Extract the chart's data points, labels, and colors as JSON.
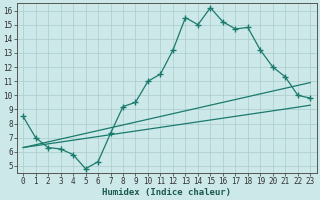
{
  "xlabel": "Humidex (Indice chaleur)",
  "bg_color": "#cce8e8",
  "line_color": "#1a7a6e",
  "grid_color": "#aacccc",
  "xlim": [
    -0.5,
    23.5
  ],
  "ylim": [
    4.5,
    16.5
  ],
  "xticks": [
    0,
    1,
    2,
    3,
    4,
    5,
    6,
    7,
    8,
    9,
    10,
    11,
    12,
    13,
    14,
    15,
    16,
    17,
    18,
    19,
    20,
    21,
    22,
    23
  ],
  "yticks": [
    5,
    6,
    7,
    8,
    9,
    10,
    11,
    12,
    13,
    14,
    15,
    16
  ],
  "series": [
    {
      "x": [
        0,
        1,
        2,
        3,
        4,
        5,
        6,
        7,
        8,
        9,
        10,
        11,
        12,
        13,
        14,
        15,
        16,
        17,
        18,
        19,
        20,
        21,
        22,
        23
      ],
      "y": [
        8.5,
        7.0,
        6.3,
        6.2,
        5.8,
        4.8,
        5.3,
        7.3,
        9.2,
        9.5,
        11.0,
        11.5,
        13.2,
        15.5,
        15.0,
        16.2,
        15.2,
        14.7,
        14.8,
        13.2,
        12.0,
        11.3,
        10.0,
        9.8
      ],
      "marker": true
    },
    {
      "x": [
        0,
        1,
        2,
        3,
        4,
        5,
        6,
        7,
        8,
        9,
        10,
        11,
        12,
        13,
        14,
        15,
        16,
        17,
        18,
        19,
        20,
        21,
        22,
        23
      ],
      "y": [
        6.3,
        6.5,
        6.7,
        6.9,
        7.1,
        7.3,
        7.5,
        7.7,
        7.9,
        8.1,
        8.3,
        8.5,
        8.7,
        8.9,
        9.1,
        9.3,
        9.5,
        9.7,
        9.9,
        10.1,
        10.3,
        10.5,
        10.7,
        10.9
      ],
      "marker": false
    },
    {
      "x": [
        0,
        1,
        2,
        3,
        4,
        5,
        6,
        7,
        8,
        9,
        10,
        11,
        12,
        13,
        14,
        15,
        16,
        17,
        18,
        19,
        20,
        21,
        22,
        23
      ],
      "y": [
        6.3,
        6.43,
        6.56,
        6.69,
        6.82,
        6.95,
        7.08,
        7.21,
        7.34,
        7.47,
        7.6,
        7.73,
        7.86,
        7.99,
        8.12,
        8.25,
        8.38,
        8.51,
        8.64,
        8.77,
        8.9,
        9.03,
        9.16,
        9.3
      ],
      "marker": false
    }
  ]
}
